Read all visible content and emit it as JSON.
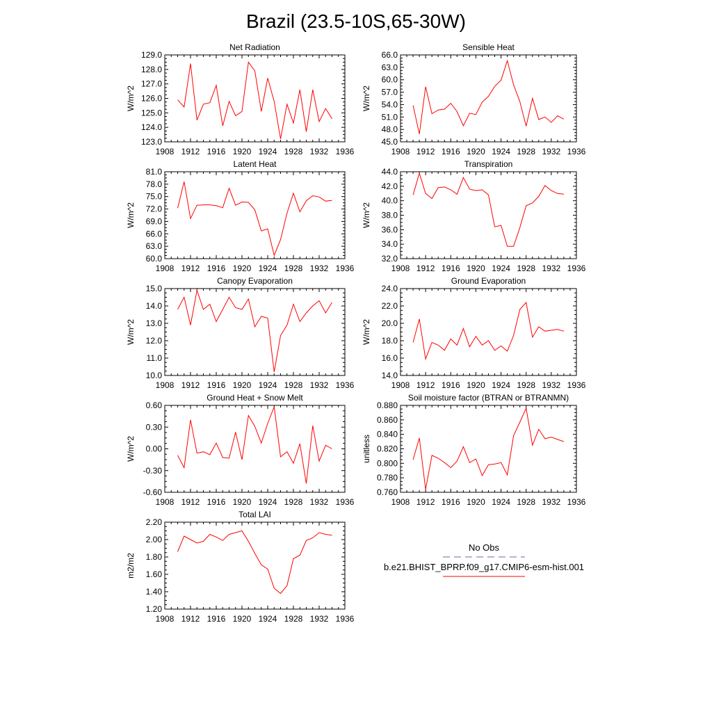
{
  "figure": {
    "title": "Brazil (23.5-10S,65-30W)"
  },
  "legend": {
    "entries": [
      {
        "label": "No Obs",
        "color": "#6b6b9a",
        "dash": "dashed"
      },
      {
        "label": "b.e21.BHIST_BPRP.f09_g17.CMIP6-esm-hist.001",
        "color": "#ff0000",
        "dash": "solid"
      }
    ]
  },
  "series_color": "#ff0000",
  "chart_data": [
    {
      "type": "line",
      "title": "Net Radiation",
      "ylabel": "W/m^2",
      "xlim": [
        1908,
        1936
      ],
      "ylim": [
        123.0,
        129.0
      ],
      "xticks": [
        1908,
        1912,
        1916,
        1920,
        1924,
        1928,
        1932,
        1936
      ],
      "yticks": [
        "123.0",
        "124.0",
        "125.0",
        "126.0",
        "127.0",
        "128.0",
        "129.0"
      ],
      "x": [
        1910,
        1911,
        1912,
        1913,
        1914,
        1915,
        1916,
        1917,
        1918,
        1919,
        1920,
        1921,
        1922,
        1923,
        1924,
        1925,
        1926,
        1927,
        1928,
        1929,
        1930,
        1931,
        1932,
        1933,
        1934
      ],
      "values": [
        125.9,
        125.4,
        128.4,
        124.5,
        125.6,
        125.7,
        126.9,
        124.1,
        125.8,
        124.8,
        125.1,
        128.5,
        127.9,
        125.1,
        127.4,
        125.8,
        123.2,
        125.6,
        124.3,
        126.6,
        123.7,
        126.6,
        124.4,
        125.3,
        124.6
      ]
    },
    {
      "type": "line",
      "title": "Sensible Heat",
      "ylabel": "W/m^2",
      "xlim": [
        1908,
        1936
      ],
      "ylim": [
        45.0,
        66.0
      ],
      "xticks": [
        1908,
        1912,
        1916,
        1920,
        1924,
        1928,
        1932,
        1936
      ],
      "yticks": [
        "45.0",
        "48.0",
        "51.0",
        "54.0",
        "57.0",
        "60.0",
        "63.0",
        "66.0"
      ],
      "x": [
        1910,
        1911,
        1912,
        1913,
        1914,
        1915,
        1916,
        1917,
        1918,
        1919,
        1920,
        1921,
        1922,
        1923,
        1924,
        1925,
        1926,
        1927,
        1928,
        1929,
        1930,
        1931,
        1932,
        1933,
        1934
      ],
      "values": [
        53.8,
        46.9,
        58.3,
        51.8,
        52.7,
        52.9,
        54.3,
        52.3,
        48.9,
        51.9,
        51.6,
        54.6,
        56.0,
        58.4,
        59.9,
        64.6,
        58.8,
        54.7,
        48.8,
        55.5,
        50.4,
        51.0,
        49.7,
        51.3,
        50.5
      ]
    },
    {
      "type": "line",
      "title": "Latent Heat",
      "ylabel": "W/m^2",
      "xlim": [
        1908,
        1936
      ],
      "ylim": [
        60.0,
        81.0
      ],
      "xticks": [
        1908,
        1912,
        1916,
        1920,
        1924,
        1928,
        1932,
        1936
      ],
      "yticks": [
        "60.0",
        "63.0",
        "66.0",
        "69.0",
        "72.0",
        "75.0",
        "78.0",
        "81.0"
      ],
      "x": [
        1910,
        1911,
        1912,
        1913,
        1914,
        1915,
        1916,
        1917,
        1918,
        1919,
        1920,
        1921,
        1922,
        1923,
        1924,
        1925,
        1926,
        1927,
        1928,
        1929,
        1930,
        1931,
        1932,
        1933,
        1934
      ],
      "values": [
        72.2,
        78.6,
        69.7,
        72.9,
        73.0,
        73.0,
        72.8,
        72.3,
        77.0,
        72.9,
        73.7,
        73.6,
        71.8,
        66.7,
        67.2,
        60.8,
        64.6,
        71.0,
        75.8,
        71.3,
        74.0,
        75.2,
        74.9,
        73.9,
        74.1
      ]
    },
    {
      "type": "line",
      "title": "Transpiration",
      "ylabel": "W/m^2",
      "xlim": [
        1908,
        1936
      ],
      "ylim": [
        32.0,
        44.0
      ],
      "xticks": [
        1908,
        1912,
        1916,
        1920,
        1924,
        1928,
        1932,
        1936
      ],
      "yticks": [
        "32.0",
        "34.0",
        "36.0",
        "38.0",
        "40.0",
        "42.0",
        "44.0"
      ],
      "x": [
        1910,
        1911,
        1912,
        1913,
        1914,
        1915,
        1916,
        1917,
        1918,
        1919,
        1920,
        1921,
        1922,
        1923,
        1924,
        1925,
        1926,
        1927,
        1928,
        1929,
        1930,
        1931,
        1932,
        1933,
        1934
      ],
      "values": [
        40.8,
        43.8,
        41.0,
        40.3,
        41.8,
        41.9,
        41.5,
        40.9,
        43.2,
        41.6,
        41.4,
        41.5,
        40.8,
        36.4,
        36.6,
        33.7,
        33.7,
        36.3,
        39.3,
        39.7,
        40.6,
        42.1,
        41.4,
        41.0,
        40.9
      ]
    },
    {
      "type": "line",
      "title": "Canopy Evaporation",
      "ylabel": "W/m^2",
      "xlim": [
        1908,
        1936
      ],
      "ylim": [
        10.0,
        15.0
      ],
      "xticks": [
        1908,
        1912,
        1916,
        1920,
        1924,
        1928,
        1932,
        1936
      ],
      "yticks": [
        "10.0",
        "11.0",
        "12.0",
        "13.0",
        "14.0",
        "15.0"
      ],
      "x": [
        1910,
        1911,
        1912,
        1913,
        1914,
        1915,
        1916,
        1917,
        1918,
        1919,
        1920,
        1921,
        1922,
        1923,
        1924,
        1925,
        1926,
        1927,
        1928,
        1929,
        1930,
        1931,
        1932,
        1933,
        1934
      ],
      "values": [
        13.8,
        14.5,
        12.9,
        14.9,
        13.8,
        14.1,
        13.1,
        13.8,
        14.5,
        13.9,
        13.8,
        14.4,
        12.8,
        13.4,
        13.3,
        10.2,
        12.3,
        12.9,
        14.1,
        13.1,
        13.6,
        14.0,
        14.3,
        13.6,
        14.2
      ]
    },
    {
      "type": "line",
      "title": "Ground Evaporation",
      "ylabel": "W/m^2",
      "xlim": [
        1908,
        1936
      ],
      "ylim": [
        14.0,
        24.0
      ],
      "xticks": [
        1908,
        1912,
        1916,
        1920,
        1924,
        1928,
        1932,
        1936
      ],
      "yticks": [
        "14.0",
        "16.0",
        "18.0",
        "20.0",
        "22.0",
        "24.0"
      ],
      "x": [
        1910,
        1911,
        1912,
        1913,
        1914,
        1915,
        1916,
        1917,
        1918,
        1919,
        1920,
        1921,
        1922,
        1923,
        1924,
        1925,
        1926,
        1927,
        1928,
        1929,
        1930,
        1931,
        1932,
        1933,
        1934
      ],
      "values": [
        17.8,
        20.5,
        15.9,
        17.8,
        17.5,
        16.9,
        18.2,
        17.5,
        19.4,
        17.3,
        18.5,
        17.5,
        18.0,
        16.9,
        17.4,
        16.8,
        18.6,
        21.6,
        22.4,
        18.4,
        19.6,
        19.1,
        19.2,
        19.3,
        19.1
      ]
    },
    {
      "type": "line",
      "title": "Ground Heat + Snow Melt",
      "ylabel": "W/m^2",
      "xlim": [
        1908,
        1936
      ],
      "ylim": [
        -0.6,
        0.6
      ],
      "xticks": [
        1908,
        1912,
        1916,
        1920,
        1924,
        1928,
        1932,
        1936
      ],
      "yticks": [
        "-0.60",
        "-0.30",
        "0.00",
        "0.30",
        "0.60"
      ],
      "x": [
        1910,
        1911,
        1912,
        1913,
        1914,
        1915,
        1916,
        1917,
        1918,
        1919,
        1920,
        1921,
        1922,
        1923,
        1924,
        1925,
        1926,
        1927,
        1928,
        1929,
        1930,
        1931,
        1932,
        1933,
        1934
      ],
      "values": [
        -0.09,
        -0.26,
        0.4,
        -0.06,
        -0.04,
        -0.08,
        0.08,
        -0.12,
        -0.13,
        0.23,
        -0.15,
        0.46,
        0.31,
        0.08,
        0.35,
        0.58,
        -0.11,
        -0.04,
        -0.2,
        0.07,
        -0.48,
        0.32,
        -0.17,
        0.05,
        0.0
      ]
    },
    {
      "type": "line",
      "title": "Soil moisture factor (BTRAN or BTRANMN)",
      "ylabel": "unitless",
      "xlim": [
        1908,
        1936
      ],
      "ylim": [
        0.76,
        0.88
      ],
      "xticks": [
        1908,
        1912,
        1916,
        1920,
        1924,
        1928,
        1932,
        1936
      ],
      "yticks": [
        "0.760",
        "0.780",
        "0.800",
        "0.820",
        "0.840",
        "0.860",
        "0.880"
      ],
      "x": [
        1910,
        1911,
        1912,
        1913,
        1914,
        1915,
        1916,
        1917,
        1918,
        1919,
        1920,
        1921,
        1922,
        1923,
        1924,
        1925,
        1926,
        1927,
        1928,
        1929,
        1930,
        1931,
        1932,
        1933,
        1934
      ],
      "values": [
        0.805,
        0.835,
        0.764,
        0.811,
        0.807,
        0.801,
        0.794,
        0.803,
        0.823,
        0.801,
        0.806,
        0.783,
        0.798,
        0.799,
        0.801,
        0.784,
        0.838,
        0.857,
        0.876,
        0.825,
        0.847,
        0.834,
        0.836,
        0.833,
        0.83
      ]
    },
    {
      "type": "line",
      "title": "Total LAI",
      "ylabel": "m2/m2",
      "xlim": [
        1908,
        1936
      ],
      "ylim": [
        1.2,
        2.2
      ],
      "xticks": [
        1908,
        1912,
        1916,
        1920,
        1924,
        1928,
        1932,
        1936
      ],
      "yticks": [
        "1.20",
        "1.40",
        "1.60",
        "1.80",
        "2.00",
        "2.20"
      ],
      "x": [
        1910,
        1911,
        1912,
        1913,
        1914,
        1915,
        1916,
        1917,
        1918,
        1919,
        1920,
        1921,
        1922,
        1923,
        1924,
        1925,
        1926,
        1927,
        1928,
        1929,
        1930,
        1931,
        1932,
        1933,
        1934
      ],
      "values": [
        1.86,
        2.04,
        2.0,
        1.96,
        1.98,
        2.06,
        2.03,
        1.99,
        2.06,
        2.08,
        2.1,
        1.98,
        1.84,
        1.71,
        1.66,
        1.44,
        1.38,
        1.47,
        1.78,
        1.82,
        1.99,
        2.02,
        2.08,
        2.06,
        2.05
      ]
    }
  ]
}
